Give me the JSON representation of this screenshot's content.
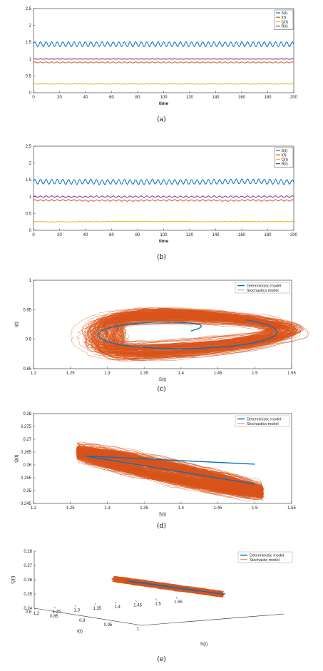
{
  "chart_data": [
    {
      "type": "line",
      "panel_label": "(a)",
      "xlabel": "time",
      "ylabel": "",
      "xlim": [
        0,
        200
      ],
      "ylim": [
        0,
        2.5
      ],
      "xticks": [
        "0",
        "20",
        "40",
        "60",
        "80",
        "100",
        "120",
        "140",
        "160",
        "180",
        "200"
      ],
      "yticks": [
        "0",
        "0.5",
        "1",
        "1.5",
        "2",
        "2.5"
      ],
      "legend_position": "top-right",
      "series": [
        {
          "name": "S(t)",
          "color": "#0072BD",
          "mean": 1.44,
          "amplitude": 0.07,
          "period": 4.3,
          "noise": 0
        },
        {
          "name": "I(t)",
          "color": "#D95319",
          "mean": 0.9,
          "amplitude": 0.015,
          "period": 4.3,
          "noise": 0
        },
        {
          "name": "Q(t)",
          "color": "#EDB120",
          "mean": 0.26,
          "amplitude": 0.004,
          "period": 4.3,
          "noise": 0
        },
        {
          "name": "R(t)",
          "color": "#7E2F8E",
          "mean": 1.0,
          "amplitude": 0.004,
          "period": 4.3,
          "noise": 0
        }
      ]
    },
    {
      "type": "line",
      "panel_label": "(b)",
      "xlabel": "time",
      "ylabel": "",
      "xlim": [
        0,
        200
      ],
      "ylim": [
        0,
        2.5
      ],
      "xticks": [
        "0",
        "20",
        "40",
        "60",
        "80",
        "100",
        "120",
        "140",
        "160",
        "180",
        "200"
      ],
      "yticks": [
        "0",
        "0.5",
        "1",
        "1.5",
        "2",
        "2.5"
      ],
      "legend_position": "top-right",
      "series": [
        {
          "name": "S(t)",
          "color": "#0072BD",
          "mean": 1.44,
          "amplitude": 0.07,
          "period": 4.3,
          "noise": 0.02
        },
        {
          "name": "I(t)",
          "color": "#D95319",
          "mean": 0.89,
          "amplitude": 0.02,
          "period": 4.3,
          "noise": 0.015
        },
        {
          "name": "Q(t)",
          "color": "#EDB120",
          "mean": 0.26,
          "amplitude": 0.005,
          "period": 4.3,
          "noise": 0.01
        },
        {
          "name": "R(t)",
          "color": "#7E2F8E",
          "mean": 1.0,
          "amplitude": 0.02,
          "period": 4.3,
          "noise": 0.01
        }
      ]
    },
    {
      "type": "line",
      "panel_label": "(c)",
      "xlabel": "S(t)",
      "ylabel": "I(t)",
      "xlim": [
        1.2,
        1.55
      ],
      "ylim": [
        0.85,
        1.0
      ],
      "xticks": [
        "1.2",
        "1.25",
        "1.3",
        "1.35",
        "1.4",
        "1.45",
        "1.5",
        "1.55"
      ],
      "yticks": [
        "0.85",
        "0.9",
        "0.95",
        "1"
      ],
      "legend_position": "top-right",
      "legend": [
        "Deterministic model",
        "Stochastics model"
      ],
      "deterministic": {
        "color": "#0072BD",
        "cx": 1.4,
        "cy": 0.912,
        "rx": 0.13,
        "ry": 0.028,
        "start": [
          1.43,
          0.915
        ]
      },
      "stochastic": {
        "color": "#D95319",
        "paths": 90,
        "cx": 1.39,
        "cy": 0.91,
        "rx": 0.13,
        "ry": 0.03
      }
    },
    {
      "type": "line",
      "panel_label": "(d)",
      "xlabel": "S(t)",
      "ylabel": "Q(t)",
      "xlim": [
        1.2,
        1.55
      ],
      "ylim": [
        0.245,
        0.28
      ],
      "xticks": [
        "1.2",
        "1.25",
        "1.3",
        "1.35",
        "1.4",
        "1.45",
        "1.5",
        "1.55"
      ],
      "yticks": [
        "0.245",
        "0.25",
        "0.255",
        "0.26",
        "0.265",
        "0.27",
        "0.275",
        "0.28"
      ],
      "legend_position": "top-right",
      "legend": [
        "Deterministic model",
        "Stochastics model"
      ],
      "deterministic": {
        "color": "#0072BD",
        "points": [
          [
            1.5,
            0.2603
          ],
          [
            1.27,
            0.2635
          ],
          [
            1.5,
            0.2525
          ]
        ]
      },
      "stochastic": {
        "color": "#D95319",
        "paths": 90
      }
    },
    {
      "type": "line",
      "panel_label": "(e)",
      "xlabel": "S(t)",
      "ylabel": "I(t)",
      "zlabel": "Q(t)",
      "xlim": [
        1.2,
        1.55
      ],
      "ylim": [
        0.8,
        1.0
      ],
      "zlim": [
        0.24,
        0.28
      ],
      "xticks": [
        "1.2",
        "1.25",
        "1.3",
        "1.35",
        "1.4",
        "1.45",
        "1.5",
        "1.55"
      ],
      "yticks": [
        "0.8",
        "0.85",
        "0.9",
        "0.95",
        "1"
      ],
      "zticks": [
        "0.24",
        "0.25",
        "0.26",
        "0.27",
        "0.28"
      ],
      "legend_position": "top-right",
      "legend": [
        "Deterministic model",
        "Stochastic model"
      ],
      "deterministic": {
        "color": "#0072BD"
      },
      "stochastic": {
        "color": "#D95319",
        "paths": 80
      }
    }
  ]
}
